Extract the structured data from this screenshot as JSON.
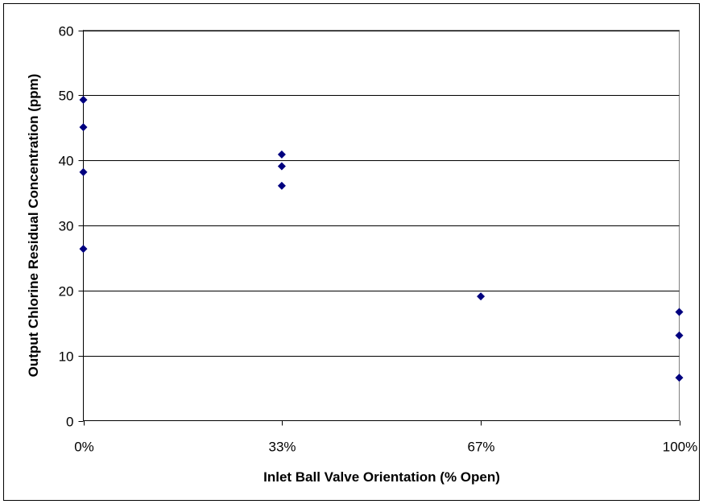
{
  "chart_data": {
    "type": "scatter",
    "title": "",
    "xlabel": "Inlet Ball Valve Orientation (% Open)",
    "ylabel": "Output Chlorine Residual Concentration (ppm)",
    "xlim": [
      0,
      100
    ],
    "ylim": [
      0,
      60
    ],
    "x_ticks": [
      0,
      33.3,
      66.7,
      100
    ],
    "x_tick_labels": [
      "0%",
      "33%",
      "67%",
      "100%"
    ],
    "y_ticks": [
      0,
      10,
      20,
      30,
      40,
      50,
      60
    ],
    "y_tick_labels": [
      "0",
      "10",
      "20",
      "30",
      "40",
      "50",
      "60"
    ],
    "grid": "horizontal",
    "legend": "none",
    "marker": "diamond",
    "marker_color": "#00007f",
    "series": [
      {
        "points": [
          {
            "x": 0,
            "y": 49.3
          },
          {
            "x": 0,
            "y": 45.1
          },
          {
            "x": 0,
            "y": 38.2
          },
          {
            "x": 0,
            "y": 26.4
          },
          {
            "x": 33.3,
            "y": 40.9
          },
          {
            "x": 33.3,
            "y": 39.1
          },
          {
            "x": 33.3,
            "y": 36.1
          },
          {
            "x": 66.7,
            "y": 19.1
          },
          {
            "x": 100,
            "y": 16.7
          },
          {
            "x": 100,
            "y": 13.1
          },
          {
            "x": 100,
            "y": 6.6
          }
        ]
      }
    ]
  }
}
